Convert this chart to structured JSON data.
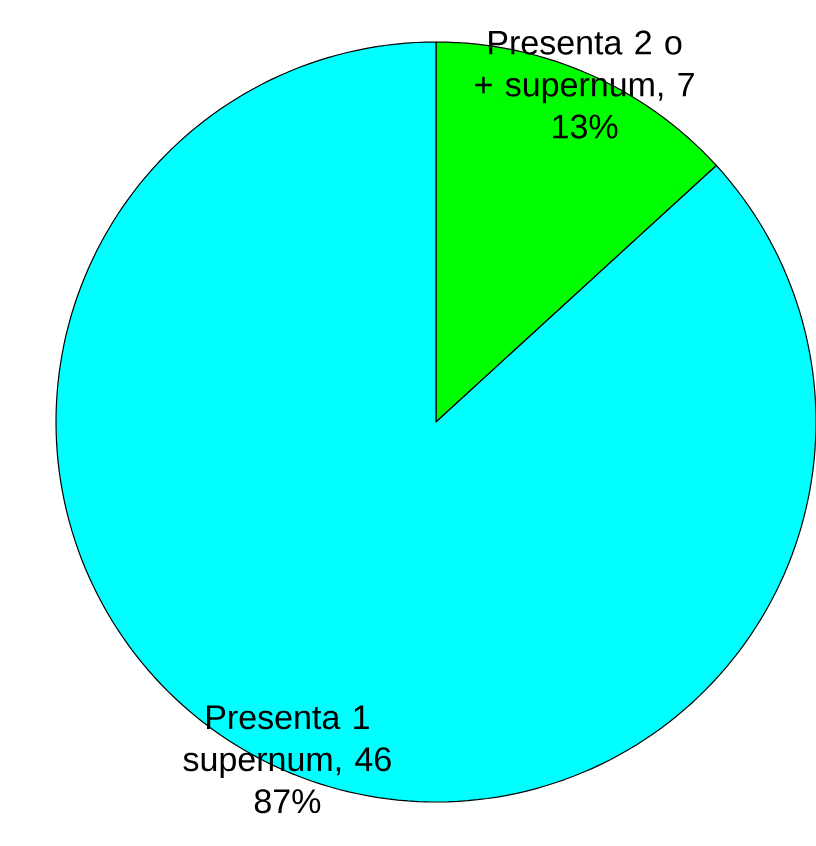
{
  "chart_data": {
    "type": "pie",
    "categories": [
      "Presenta 2 o + supernum, 7",
      "Presenta 1 supernum, 46"
    ],
    "values": [
      7,
      46
    ],
    "colors": [
      "#00ff00",
      "#00ffff"
    ],
    "annotations": [
      "13%",
      "87%"
    ]
  }
}
